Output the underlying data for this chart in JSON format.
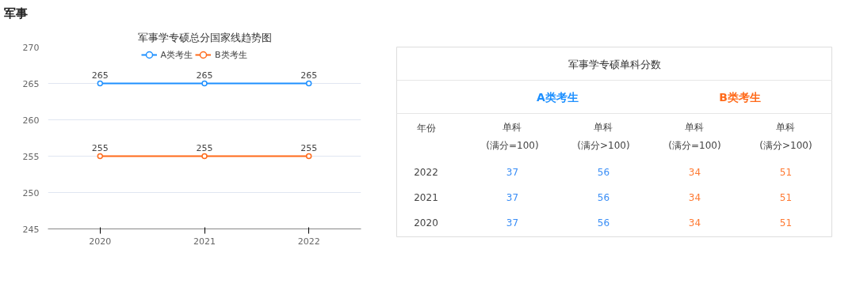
{
  "chart_data": [
    {
      "type": "line",
      "title": "军事学专硕总分国家线趋势图",
      "annotations": [
        "军事"
      ],
      "categories": [
        "2020",
        "2021",
        "2022"
      ],
      "series": [
        {
          "name": "A类考生",
          "color": "#1e90ff",
          "values": [
            265,
            265,
            265
          ]
        },
        {
          "name": "B类考生",
          "color": "#ff6a1a",
          "values": [
            255,
            255,
            255
          ]
        }
      ],
      "ylim": [
        245,
        270
      ],
      "yticks": [
        245,
        250,
        255,
        260,
        265,
        270
      ],
      "grid": "y",
      "legend": "top",
      "marker": "circle",
      "line_style": "solid",
      "data_labels": true
    },
    {
      "type": "other",
      "title": "军事学专硕单科分数",
      "annotations": [
        "A类考生",
        "B类考生",
        "年份",
        "单科\n(满分=100)",
        "单科\n(满分>100)",
        "单科\n(满分=100)",
        "单科\n(满分>100)",
        "2022",
        "37",
        "56",
        "34",
        "51",
        "2021",
        "37",
        "56",
        "34",
        "51",
        "2020",
        "37",
        "56",
        "34",
        "51"
      ]
    }
  ]
}
